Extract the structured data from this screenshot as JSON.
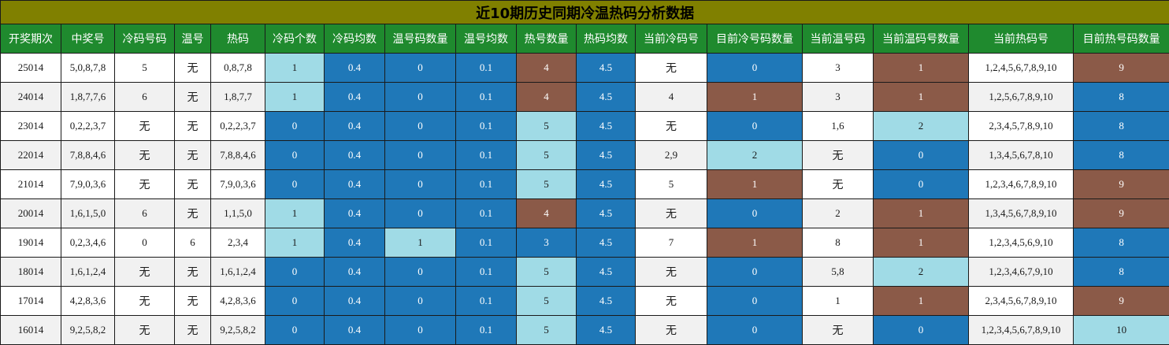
{
  "title": "近10期历史同期冷温热码分析数据",
  "colors": {
    "title_bg": "#808000",
    "header_bg": "#1f8a2e",
    "blue": "#1f78b8",
    "light": "#a0dbe6",
    "brown": "#8b5a48"
  },
  "headers": [
    "开奖期次",
    "中奖号",
    "冷码号码",
    "温号",
    "热码",
    "冷码个数",
    "冷码均数",
    "温号码数量",
    "温号均数",
    "热号数量",
    "热码均数",
    "当前冷码号",
    "目前冷号码数量",
    "当前温号码",
    "当前温码号数量",
    "当前热码号",
    "目前热号码数量"
  ],
  "rows": [
    {
      "cells": [
        "25014",
        "5,0,8,7,8",
        "5",
        "无",
        "0,8,7,8",
        "1",
        "0.4",
        "0",
        "0.1",
        "4",
        "4.5",
        "无",
        "0",
        "3",
        "1",
        "1,2,4,5,6,7,8,9,10",
        "9"
      ],
      "styles": [
        "plain",
        "plain",
        "plain",
        "plain",
        "plain",
        "light",
        "blue",
        "blue",
        "blue",
        "brown",
        "blue",
        "plain",
        "blue",
        "plain",
        "brown",
        "plain",
        "brown"
      ]
    },
    {
      "cells": [
        "24014",
        "1,8,7,7,6",
        "6",
        "无",
        "1,8,7,7",
        "1",
        "0.4",
        "0",
        "0.1",
        "4",
        "4.5",
        "4",
        "1",
        "3",
        "1",
        "1,2,5,6,7,8,9,10",
        "8"
      ],
      "styles": [
        "plain",
        "plain",
        "plain",
        "plain",
        "plain",
        "light",
        "blue",
        "blue",
        "blue",
        "brown",
        "blue",
        "plain",
        "brown",
        "plain",
        "brown",
        "plain",
        "blue"
      ]
    },
    {
      "cells": [
        "23014",
        "0,2,2,3,7",
        "无",
        "无",
        "0,2,2,3,7",
        "0",
        "0.4",
        "0",
        "0.1",
        "5",
        "4.5",
        "无",
        "0",
        "1,6",
        "2",
        "2,3,4,5,7,8,9,10",
        "8"
      ],
      "styles": [
        "plain",
        "plain",
        "plain",
        "plain",
        "plain",
        "blue",
        "blue",
        "blue",
        "blue",
        "light",
        "blue",
        "plain",
        "blue",
        "plain",
        "light",
        "plain",
        "blue"
      ]
    },
    {
      "cells": [
        "22014",
        "7,8,8,4,6",
        "无",
        "无",
        "7,8,8,4,6",
        "0",
        "0.4",
        "0",
        "0.1",
        "5",
        "4.5",
        "2,9",
        "2",
        "无",
        "0",
        "1,3,4,5,6,7,8,10",
        "8"
      ],
      "styles": [
        "plain",
        "plain",
        "plain",
        "plain",
        "plain",
        "blue",
        "blue",
        "blue",
        "blue",
        "light",
        "blue",
        "plain",
        "light",
        "plain",
        "blue",
        "plain",
        "blue"
      ]
    },
    {
      "cells": [
        "21014",
        "7,9,0,3,6",
        "无",
        "无",
        "7,9,0,3,6",
        "0",
        "0.4",
        "0",
        "0.1",
        "5",
        "4.5",
        "5",
        "1",
        "无",
        "0",
        "1,2,3,4,6,7,8,9,10",
        "9"
      ],
      "styles": [
        "plain",
        "plain",
        "plain",
        "plain",
        "plain",
        "blue",
        "blue",
        "blue",
        "blue",
        "light",
        "blue",
        "plain",
        "brown",
        "plain",
        "blue",
        "plain",
        "brown"
      ]
    },
    {
      "cells": [
        "20014",
        "1,6,1,5,0",
        "6",
        "无",
        "1,1,5,0",
        "1",
        "0.4",
        "0",
        "0.1",
        "4",
        "4.5",
        "无",
        "0",
        "2",
        "1",
        "1,3,4,5,6,7,8,9,10",
        "9"
      ],
      "styles": [
        "plain",
        "plain",
        "plain",
        "plain",
        "plain",
        "light",
        "blue",
        "blue",
        "blue",
        "brown",
        "blue",
        "plain",
        "blue",
        "plain",
        "brown",
        "plain",
        "brown"
      ]
    },
    {
      "cells": [
        "19014",
        "0,2,3,4,6",
        "0",
        "6",
        "2,3,4",
        "1",
        "0.4",
        "1",
        "0.1",
        "3",
        "4.5",
        "7",
        "1",
        "8",
        "1",
        "1,2,3,4,5,6,9,10",
        "8"
      ],
      "styles": [
        "plain",
        "plain",
        "plain",
        "plain",
        "plain",
        "light",
        "blue",
        "light",
        "blue",
        "blue",
        "blue",
        "plain",
        "brown",
        "plain",
        "brown",
        "plain",
        "blue"
      ]
    },
    {
      "cells": [
        "18014",
        "1,6,1,2,4",
        "无",
        "无",
        "1,6,1,2,4",
        "0",
        "0.4",
        "0",
        "0.1",
        "5",
        "4.5",
        "无",
        "0",
        "5,8",
        "2",
        "1,2,3,4,6,7,9,10",
        "8"
      ],
      "styles": [
        "plain",
        "plain",
        "plain",
        "plain",
        "plain",
        "blue",
        "blue",
        "blue",
        "blue",
        "light",
        "blue",
        "plain",
        "blue",
        "plain",
        "light",
        "plain",
        "blue"
      ]
    },
    {
      "cells": [
        "17014",
        "4,2,8,3,6",
        "无",
        "无",
        "4,2,8,3,6",
        "0",
        "0.4",
        "0",
        "0.1",
        "5",
        "4.5",
        "无",
        "0",
        "1",
        "1",
        "2,3,4,5,6,7,8,9,10",
        "9"
      ],
      "styles": [
        "plain",
        "plain",
        "plain",
        "plain",
        "plain",
        "blue",
        "blue",
        "blue",
        "blue",
        "light",
        "blue",
        "plain",
        "blue",
        "plain",
        "brown",
        "plain",
        "brown"
      ]
    },
    {
      "cells": [
        "16014",
        "9,2,5,8,2",
        "无",
        "无",
        "9,2,5,8,2",
        "0",
        "0.4",
        "0",
        "0.1",
        "5",
        "4.5",
        "无",
        "0",
        "无",
        "0",
        "1,2,3,4,5,6,7,8,9,10",
        "10"
      ],
      "styles": [
        "plain",
        "plain",
        "plain",
        "plain",
        "plain",
        "blue",
        "blue",
        "blue",
        "blue",
        "light",
        "blue",
        "plain",
        "blue",
        "plain",
        "blue",
        "plain",
        "light"
      ]
    }
  ]
}
